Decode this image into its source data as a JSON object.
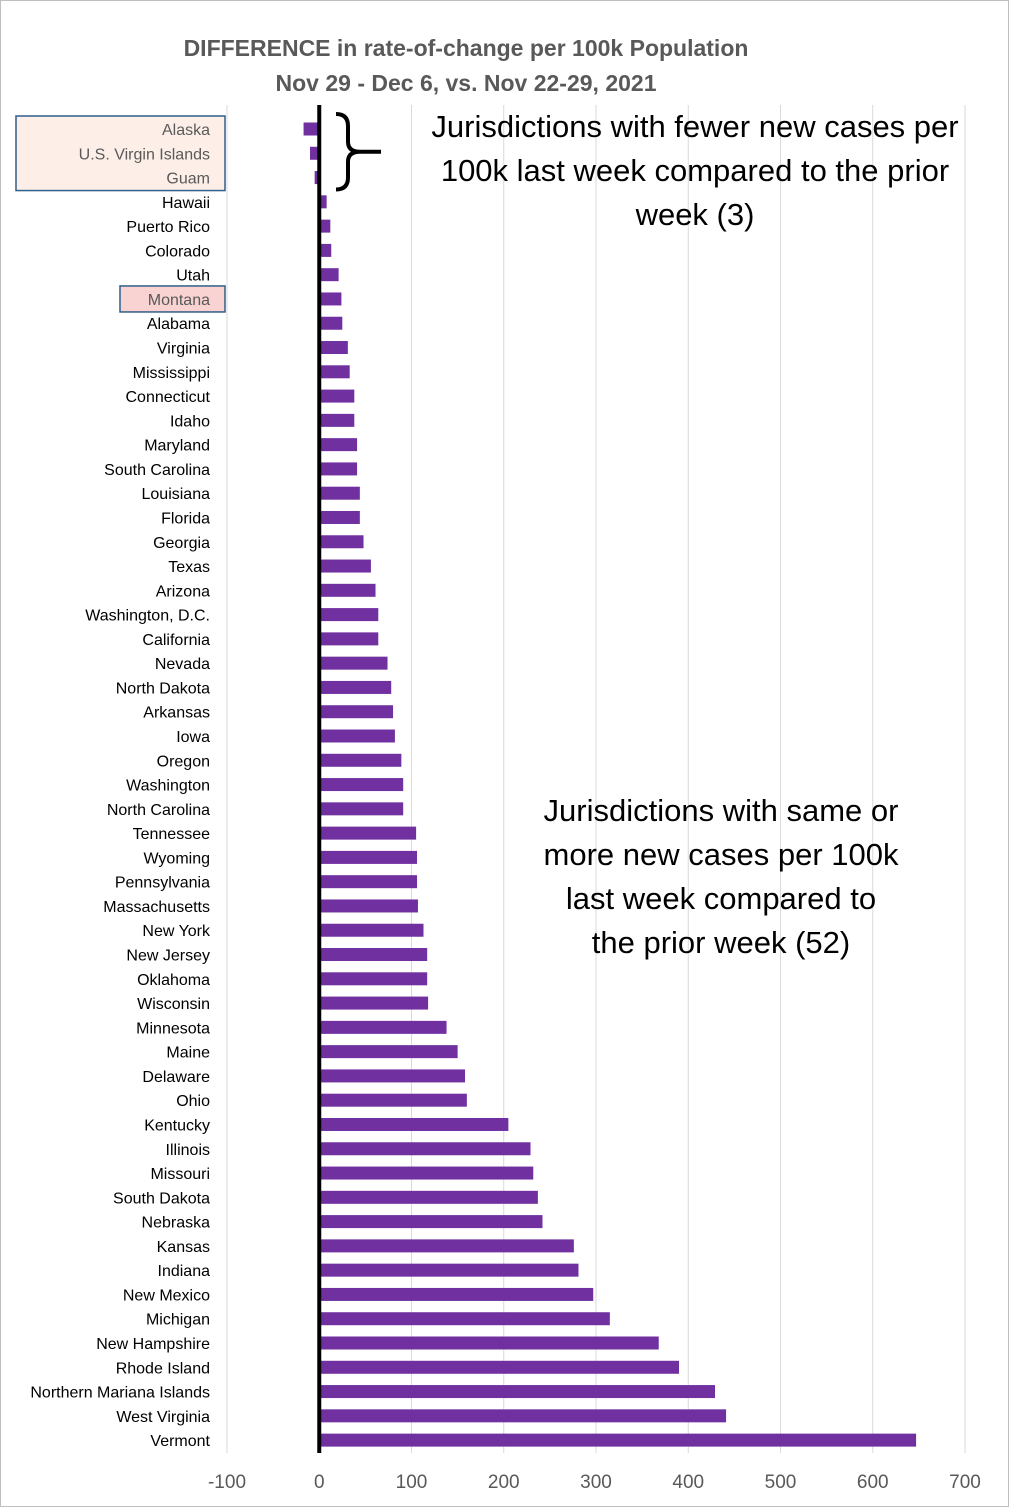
{
  "chart_data": {
    "type": "bar",
    "orientation": "horizontal",
    "title": "DIFFERENCE in rate-of-change per 100k Population",
    "subtitle": "Nov 29 - Dec 6, vs. Nov 22-29, 2021",
    "xlabel": "",
    "ylabel": "",
    "xlim": [
      -100,
      700
    ],
    "xticks": [
      "-100",
      "0",
      "100",
      "200",
      "300",
      "400",
      "500",
      "600",
      "700"
    ],
    "xtick_values": [
      -100,
      0,
      100,
      200,
      300,
      400,
      500,
      600,
      700
    ],
    "grid": "vertical",
    "bar_color": "#7030a0",
    "categories": [
      "Alaska",
      "U.S. Virgin Islands",
      "Guam",
      "Hawaii",
      "Puerto Rico",
      "Colorado",
      "Utah",
      "Montana",
      "Alabama",
      "Virginia",
      "Mississippi",
      "Connecticut",
      "Idaho",
      "Maryland",
      "South Carolina",
      "Louisiana",
      "Florida",
      "Georgia",
      "Texas",
      "Arizona",
      "Washington, D.C.",
      "California",
      "Nevada",
      "North Dakota",
      "Arkansas",
      "Iowa",
      "Oregon",
      "Washington",
      "North Carolina",
      "Tennessee",
      "Wyoming",
      "Pennsylvania",
      "Massachusetts",
      "New York",
      "New Jersey",
      "Oklahoma",
      "Wisconsin",
      "Minnesota",
      "Maine",
      "Delaware",
      "Ohio",
      "Kentucky",
      "Illinois",
      "Missouri",
      "South Dakota",
      "Nebraska",
      "Kansas",
      "Indiana",
      "New Mexico",
      "Michigan",
      "New Hampshire",
      "Rhode Island",
      "Northern Mariana Islands",
      "West Virginia",
      "Vermont"
    ],
    "values": [
      -17,
      -10,
      -5,
      8,
      12,
      13,
      21,
      24,
      25,
      31,
      33,
      38,
      38,
      41,
      41,
      44,
      44,
      48,
      56,
      61,
      64,
      64,
      74,
      78,
      80,
      82,
      89,
      91,
      91,
      105,
      106,
      106,
      107,
      113,
      117,
      117,
      118,
      138,
      150,
      158,
      160,
      205,
      229,
      232,
      237,
      242,
      276,
      281,
      297,
      315,
      368,
      390,
      429,
      441,
      647
    ],
    "highlight_groups": [
      {
        "categories": [
          "Alaska",
          "U.S. Virgin Islands",
          "Guam"
        ],
        "fill": "#fdefe8",
        "border": "#2f5f8a"
      },
      {
        "categories": [
          "Montana"
        ],
        "fill": "#f9d2d2",
        "border": "#2f5f8a"
      }
    ],
    "annotations": [
      {
        "lines": [
          "Jurisdictions with fewer new cases per",
          "100k last week compared to the prior",
          "week (3)"
        ],
        "refers_to": "negative"
      },
      {
        "lines": [
          "Jurisdictions with same or",
          "more new cases per 100k",
          "last week compared to",
          "the prior week (52)"
        ],
        "refers_to": "positive"
      }
    ]
  }
}
